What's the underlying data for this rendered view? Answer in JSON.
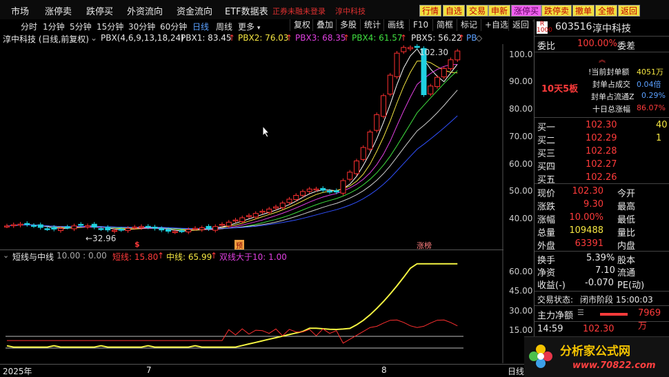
{
  "menu": {
    "items": [
      "市场",
      "涨停卖",
      "跌停买",
      "外资流向",
      "资金流向",
      "ETF数据表"
    ],
    "notice1": "正券未融未登录",
    "notice2": "淳中科技",
    "buttons": [
      "行情",
      "自选",
      "交易",
      "申新",
      "涨停买",
      "跌停卖",
      "撤单",
      "全撤",
      "返回"
    ]
  },
  "toolbar": {
    "periods": [
      "分时",
      "1分钟",
      "5分钟",
      "15分钟",
      "30分钟",
      "60分钟",
      "日线",
      "周线",
      "更多"
    ],
    "active_period": "日线",
    "buttons": [
      "复权",
      "叠加",
      "多股",
      "统计",
      "画线",
      "F10",
      "简框",
      "标记",
      "+自选",
      "返回"
    ]
  },
  "info": {
    "stock": "淳中科技 (日线,前复权)",
    "indicator": "PBX(4,6,9,13,18,24)",
    "pbx1": "PBX1: 83.45",
    "pbx2": "PBX2: 76.03",
    "pbx3": "PBX3: 68.35",
    "pbx4": "PBX4: 61.57",
    "pbx5": "PBX5: 56.22",
    "pb_more": "PB"
  },
  "chart": {
    "high_label": "102.30",
    "low_label": "←32.96",
    "yticks": [
      "100.0",
      "90.00",
      "80.00",
      "70.00",
      "60.00",
      "50.00",
      "40.00"
    ],
    "markers": [
      "$",
      "预",
      "涨榜"
    ],
    "dates": [
      "2025年",
      "7",
      "8"
    ],
    "period_label": "日线"
  },
  "indicator_panel": {
    "title": "短线与中线",
    "params": "10.00 : 0.00",
    "short": "短线: 15.80",
    "mid": "中线: 65.99",
    "cross": "双线大于10: 1.00",
    "yticks": [
      "60.00",
      "45.00",
      "30.00",
      "15.00"
    ]
  },
  "quote": {
    "code": "603516",
    "name": "淳中科技",
    "ratio_label": "委比",
    "ratio": "100.00%",
    "diff_label": "委差",
    "seal_amount_label": "当前封单额",
    "seal_amount": "4051万",
    "seal_vol_label": "封单占成交",
    "seal_vol": "0.04倍",
    "seal_float_label": "封单占流通Z",
    "seal_float": "0.29%",
    "ten_day_label": "十日总涨幅",
    "ten_day": "86.07%",
    "board": "10天5板",
    "bids": [
      {
        "label": "买一",
        "price": "102.30",
        "vol": "40"
      },
      {
        "label": "买二",
        "price": "102.29",
        "vol": "1"
      },
      {
        "label": "买三",
        "price": "102.28",
        "vol": ""
      },
      {
        "label": "买四",
        "price": "102.27",
        "vol": ""
      },
      {
        "label": "买五",
        "price": "102.26",
        "vol": ""
      }
    ],
    "stats": [
      {
        "l1": "现价",
        "v1": "102.30",
        "l2": "今开"
      },
      {
        "l1": "涨跌",
        "v1": "9.30",
        "l2": "最高"
      },
      {
        "l1": "涨幅",
        "v1": "10.00%",
        "l2": "最低"
      },
      {
        "l1": "总量",
        "v1": "109488",
        "l2": "量比"
      },
      {
        "l1": "外盘",
        "v1": "63391",
        "l2": "内盘"
      }
    ],
    "turnover_label": "换手",
    "turnover": "5.39%",
    "equity_label": "股本",
    "net_asset_label": "净资",
    "net_asset": "7.10",
    "float_label": "流通",
    "eps_label": "收益(-)",
    "eps": "-0.070",
    "pe_label": "PE(动)",
    "status_label": "交易状态:",
    "status": "闭市阶段 15:00:03",
    "main_flow_label": "主力净额",
    "main_flow": "7969万",
    "tick_time": "14:59",
    "tick_price": "102.30"
  },
  "logo": {
    "text": "分析家公式网",
    "url": "www.70822.com"
  }
}
